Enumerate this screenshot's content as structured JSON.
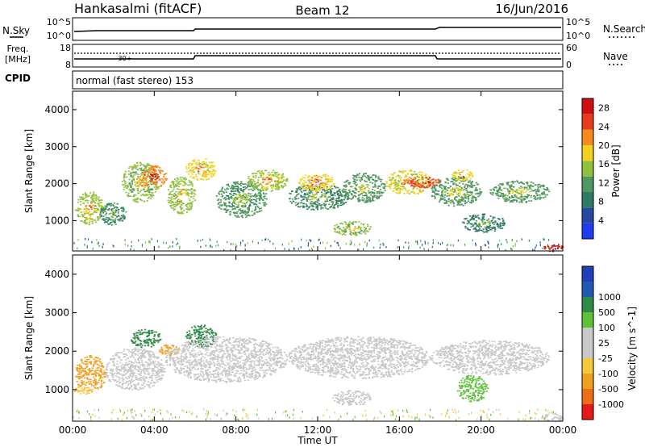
{
  "header": {
    "station": "Hankasalmi (fitACF)",
    "beam": "Beam 12",
    "date": "16/Jun/2016"
  },
  "panels": {
    "nsky": {
      "left_label": "N.Sky",
      "right_label": "N.Search",
      "left_ticks": [
        "10^5",
        "10^0"
      ],
      "right_ticks": [
        "10^5",
        "10^0"
      ]
    },
    "freq": {
      "left_label_line1": "Freq.",
      "left_label_line2": "[MHz]",
      "right_label": "Nave",
      "left_ticks": [
        "18",
        "8"
      ],
      "right_ticks": [
        "60",
        "0"
      ]
    },
    "cpid": {
      "label": "CPID",
      "mode_text": "normal (fast stereo) 153",
      "marker_text": "30+"
    }
  },
  "axes": {
    "y_label": "Slant Range [km]",
    "y_ticks": [
      "1000",
      "2000",
      "3000",
      "4000"
    ],
    "x_ticks": [
      "00:00",
      "04:00",
      "08:00",
      "12:00",
      "16:00",
      "20:00",
      "00:00"
    ],
    "x_label": "Time UT"
  },
  "colors": {
    "power": [
      "#1f3cf0",
      "#26489e",
      "#2f7a64",
      "#50985f",
      "#90c040",
      "#f2d21e",
      "#f58a1e",
      "#e83a1f",
      "#d01010"
    ],
    "velocity": [
      "#e81818",
      "#ec6e19",
      "#f0a020",
      "#f5c83c",
      "#c8c8c8",
      "#c8c8c8",
      "#5fc03a",
      "#2f8a4a",
      "#215ab0",
      "#2040b8"
    ]
  },
  "chart_data": [
    {
      "type": "heatmap",
      "title": "Power",
      "ylabel": "Slant Range [km]",
      "xlabel": "Time UT",
      "xlim": [
        0,
        24
      ],
      "ylim": [
        180,
        4500
      ],
      "colorbar_label": "Power [dB]",
      "colorbar_ticks": [
        "4",
        "8",
        "12",
        "16",
        "20",
        "24",
        "28"
      ],
      "colorbar_range": [
        0,
        30
      ],
      "blobs": [
        {
          "t0": 0.1,
          "t1": 1.5,
          "r0": 900,
          "r1": 1800,
          "v": 16
        },
        {
          "t0": 1.2,
          "t1": 2.6,
          "r0": 900,
          "r1": 1500,
          "v": 10
        },
        {
          "t0": 2.4,
          "t1": 4.2,
          "r0": 1500,
          "r1": 2600,
          "v": 14
        },
        {
          "t0": 3.3,
          "t1": 4.6,
          "r0": 1900,
          "r1": 2500,
          "v": 22
        },
        {
          "t0": 4.6,
          "t1": 6.0,
          "r0": 1200,
          "r1": 2200,
          "v": 15
        },
        {
          "t0": 5.5,
          "t1": 7.0,
          "r0": 2100,
          "r1": 2700,
          "v": 18
        },
        {
          "t0": 7.0,
          "t1": 9.5,
          "r0": 1100,
          "r1": 2100,
          "v": 11
        },
        {
          "t0": 8.5,
          "t1": 10.5,
          "r0": 1800,
          "r1": 2400,
          "v": 16
        },
        {
          "t0": 10.5,
          "t1": 13.5,
          "r0": 1300,
          "r1": 2000,
          "v": 10
        },
        {
          "t0": 11.0,
          "t1": 12.8,
          "r0": 1800,
          "r1": 2300,
          "v": 19
        },
        {
          "t0": 12.7,
          "t1": 14.6,
          "r0": 600,
          "r1": 1000,
          "v": 14
        },
        {
          "t0": 13.2,
          "t1": 15.3,
          "r0": 1500,
          "r1": 2300,
          "v": 12
        },
        {
          "t0": 15.3,
          "t1": 17.5,
          "r0": 1700,
          "r1": 2400,
          "v": 17
        },
        {
          "t0": 16.4,
          "t1": 18.0,
          "r0": 1900,
          "r1": 2200,
          "v": 24
        },
        {
          "t0": 17.5,
          "t1": 20.0,
          "r0": 1400,
          "r1": 2200,
          "v": 12
        },
        {
          "t0": 18.5,
          "t1": 19.6,
          "r0": 2100,
          "r1": 2400,
          "v": 18
        },
        {
          "t0": 19.0,
          "t1": 21.2,
          "r0": 700,
          "r1": 1200,
          "v": 9
        },
        {
          "t0": 20.4,
          "t1": 23.3,
          "r0": 1500,
          "r1": 2100,
          "v": 12
        },
        {
          "t0": 23.0,
          "t1": 24.0,
          "r0": 180,
          "r1": 400,
          "v": 28
        }
      ]
    },
    {
      "type": "heatmap",
      "title": "Velocity",
      "ylabel": "Slant Range [km]",
      "xlabel": "Time UT",
      "xlim": [
        0,
        24
      ],
      "ylim": [
        180,
        4500
      ],
      "colorbar_label": "Velocity [m s^-1]",
      "colorbar_ticks": [
        "-1000",
        "-500",
        "-100",
        "-25",
        "25",
        "100",
        "500",
        "1000"
      ],
      "blobs": [
        {
          "t0": 0.1,
          "t1": 1.6,
          "r0": 950,
          "r1": 1900,
          "v": -300
        },
        {
          "t0": 0.0,
          "t1": 1.0,
          "r0": 900,
          "r1": 1100,
          "v": -60
        },
        {
          "t0": 1.5,
          "t1": 4.5,
          "r0": 1000,
          "r1": 2100,
          "v": 0
        },
        {
          "t0": 2.8,
          "t1": 4.3,
          "r0": 2100,
          "r1": 2600,
          "v": 150
        },
        {
          "t0": 4.2,
          "t1": 5.2,
          "r0": 1900,
          "r1": 2200,
          "v": -150
        },
        {
          "t0": 5.5,
          "t1": 7.0,
          "r0": 2100,
          "r1": 2700,
          "v": 250
        },
        {
          "t0": 4.5,
          "t1": 10.5,
          "r0": 1200,
          "r1": 2400,
          "v": 0
        },
        {
          "t0": 10.5,
          "t1": 17.5,
          "r0": 1300,
          "r1": 2400,
          "v": 0
        },
        {
          "t0": 12.7,
          "t1": 14.6,
          "r0": 600,
          "r1": 1000,
          "v": 0
        },
        {
          "t0": 17.5,
          "t1": 23.3,
          "r0": 1400,
          "r1": 2300,
          "v": 0
        },
        {
          "t0": 18.8,
          "t1": 20.3,
          "r0": 700,
          "r1": 1400,
          "v": 70
        },
        {
          "t0": 23.0,
          "t1": 24.0,
          "r0": 180,
          "r1": 400,
          "v": 0
        }
      ]
    }
  ]
}
